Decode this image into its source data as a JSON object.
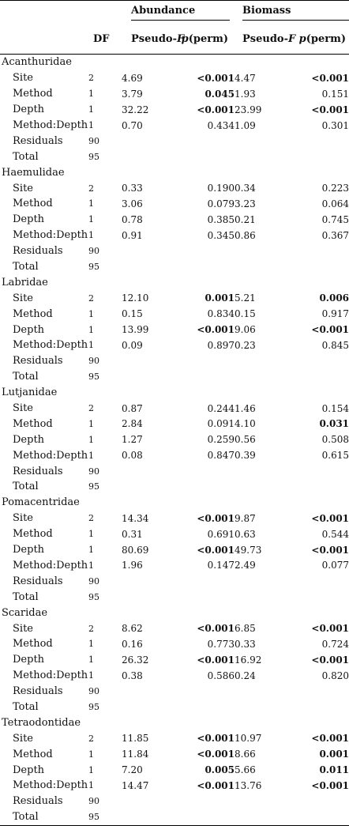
{
  "header": {
    "abundance": "Abundance",
    "biomass": "Biomass",
    "df": "DF",
    "pseudo_f_prefix": "Pseudo-",
    "pseudo_f_var": "F",
    "p_var": "p",
    "p_suffix": "(perm)"
  },
  "families": [
    {
      "name": "Acanthuridae",
      "rows": [
        {
          "term": "Site",
          "df": "2",
          "af": "4.69",
          "ap": "<0.001",
          "ap_sig": true,
          "bf": "4.47",
          "bp": "<0.001",
          "bp_sig": true
        },
        {
          "term": "Method",
          "df": "1",
          "af": "3.79",
          "ap": "0.045",
          "ap_sig": true,
          "bf": "1.93",
          "bp": "0.151",
          "bp_sig": false
        },
        {
          "term": "Depth",
          "df": "1",
          "af": "32.22",
          "ap": "<0.001",
          "ap_sig": true,
          "bf": "23.99",
          "bp": "<0.001",
          "bp_sig": true
        },
        {
          "term": "Method:Depth",
          "df": "1",
          "af": "0.70",
          "ap": "0.434",
          "ap_sig": false,
          "bf": "1.09",
          "bp": "0.301",
          "bp_sig": false
        },
        {
          "term": "Residuals",
          "df": "90",
          "af": "",
          "ap": "",
          "ap_sig": false,
          "bf": "",
          "bp": "",
          "bp_sig": false
        },
        {
          "term": "Total",
          "df": "95",
          "af": "",
          "ap": "",
          "ap_sig": false,
          "bf": "",
          "bp": "",
          "bp_sig": false
        }
      ]
    },
    {
      "name": "Haemulidae",
      "rows": [
        {
          "term": "Site",
          "df": "2",
          "af": "0.33",
          "ap": "0.190",
          "ap_sig": false,
          "bf": "0.34",
          "bp": "0.223",
          "bp_sig": false
        },
        {
          "term": "Method",
          "df": "1",
          "af": "3.06",
          "ap": "0.079",
          "ap_sig": false,
          "bf": "3.23",
          "bp": "0.064",
          "bp_sig": false
        },
        {
          "term": "Depth",
          "df": "1",
          "af": "0.78",
          "ap": "0.385",
          "ap_sig": false,
          "bf": "0.21",
          "bp": "0.745",
          "bp_sig": false
        },
        {
          "term": "Method:Depth",
          "df": "1",
          "af": "0.91",
          "ap": "0.345",
          "ap_sig": false,
          "bf": "0.86",
          "bp": "0.367",
          "bp_sig": false
        },
        {
          "term": "Residuals",
          "df": "90",
          "af": "",
          "ap": "",
          "ap_sig": false,
          "bf": "",
          "bp": "",
          "bp_sig": false
        },
        {
          "term": "Total",
          "df": "95",
          "af": "",
          "ap": "",
          "ap_sig": false,
          "bf": "",
          "bp": "",
          "bp_sig": false
        }
      ]
    },
    {
      "name": "Labridae",
      "rows": [
        {
          "term": "Site",
          "df": "2",
          "af": "12.10",
          "ap": "0.001",
          "ap_sig": true,
          "bf": "5.21",
          "bp": "0.006",
          "bp_sig": true
        },
        {
          "term": "Method",
          "df": "1",
          "af": "0.15",
          "ap": "0.834",
          "ap_sig": false,
          "bf": "0.15",
          "bp": "0.917",
          "bp_sig": false
        },
        {
          "term": "Depth",
          "df": "1",
          "af": "13.99",
          "ap": "<0.001",
          "ap_sig": true,
          "bf": "9.06",
          "bp": "<0.001",
          "bp_sig": true
        },
        {
          "term": "Method:Depth",
          "df": "1",
          "af": "0.09",
          "ap": "0.897",
          "ap_sig": false,
          "bf": "0.23",
          "bp": "0.845",
          "bp_sig": false
        },
        {
          "term": "Residuals",
          "df": "90",
          "af": "",
          "ap": "",
          "ap_sig": false,
          "bf": "",
          "bp": "",
          "bp_sig": false
        },
        {
          "term": "Total",
          "df": "95",
          "af": "",
          "ap": "",
          "ap_sig": false,
          "bf": "",
          "bp": "",
          "bp_sig": false
        }
      ]
    },
    {
      "name": "Lutjanidae",
      "rows": [
        {
          "term": "Site",
          "df": "2",
          "af": "0.87",
          "ap": "0.244",
          "ap_sig": false,
          "bf": "1.46",
          "bp": "0.154",
          "bp_sig": false
        },
        {
          "term": "Method",
          "df": "1",
          "af": "2.84",
          "ap": "0.091",
          "ap_sig": false,
          "bf": "4.10",
          "bp": "0.031",
          "bp_sig": true
        },
        {
          "term": "Depth",
          "df": "1",
          "af": "1.27",
          "ap": "0.259",
          "ap_sig": false,
          "bf": "0.56",
          "bp": "0.508",
          "bp_sig": false
        },
        {
          "term": "Method:Depth",
          "df": "1",
          "af": "0.08",
          "ap": "0.847",
          "ap_sig": false,
          "bf": "0.39",
          "bp": "0.615",
          "bp_sig": false
        },
        {
          "term": "Residuals",
          "df": "90",
          "af": "",
          "ap": "",
          "ap_sig": false,
          "bf": "",
          "bp": "",
          "bp_sig": false
        },
        {
          "term": "Total",
          "df": "95",
          "af": "",
          "ap": "",
          "ap_sig": false,
          "bf": "",
          "bp": "",
          "bp_sig": false
        }
      ]
    },
    {
      "name": "Pomacentridae",
      "rows": [
        {
          "term": "Site",
          "df": "2",
          "af": "14.34",
          "ap": "<0.001",
          "ap_sig": true,
          "bf": "9.87",
          "bp": "<0.001",
          "bp_sig": true
        },
        {
          "term": "Method",
          "df": "1",
          "af": "0.31",
          "ap": "0.691",
          "ap_sig": false,
          "bf": "0.63",
          "bp": "0.544",
          "bp_sig": false
        },
        {
          "term": "Depth",
          "df": "1",
          "af": "80.69",
          "ap": "<0.001",
          "ap_sig": true,
          "bf": "49.73",
          "bp": "<0.001",
          "bp_sig": true
        },
        {
          "term": "Method:Depth",
          "df": "1",
          "af": "1.96",
          "ap": "0.147",
          "ap_sig": false,
          "bf": "2.49",
          "bp": "0.077",
          "bp_sig": false
        },
        {
          "term": "Residuals",
          "df": "90",
          "af": "",
          "ap": "",
          "ap_sig": false,
          "bf": "",
          "bp": "",
          "bp_sig": false
        },
        {
          "term": "Total",
          "df": "95",
          "af": "",
          "ap": "",
          "ap_sig": false,
          "bf": "",
          "bp": "",
          "bp_sig": false
        }
      ]
    },
    {
      "name": "Scaridae",
      "rows": [
        {
          "term": "Site",
          "df": "2",
          "af": "8.62",
          "ap": "<0.001",
          "ap_sig": true,
          "bf": "6.85",
          "bp": "<0.001",
          "bp_sig": true
        },
        {
          "term": "Method",
          "df": "1",
          "af": "0.16",
          "ap": "0.773",
          "ap_sig": false,
          "bf": "0.33",
          "bp": "0.724",
          "bp_sig": false
        },
        {
          "term": "Depth",
          "df": "1",
          "af": "26.32",
          "ap": "<0.001",
          "ap_sig": true,
          "bf": "16.92",
          "bp": "<0.001",
          "bp_sig": true
        },
        {
          "term": "Method:Depth",
          "df": "1",
          "af": "0.38",
          "ap": "0.586",
          "ap_sig": false,
          "bf": "0.24",
          "bp": "0.820",
          "bp_sig": false
        },
        {
          "term": "Residuals",
          "df": "90",
          "af": "",
          "ap": "",
          "ap_sig": false,
          "bf": "",
          "bp": "",
          "bp_sig": false
        },
        {
          "term": "Total",
          "df": "95",
          "af": "",
          "ap": "",
          "ap_sig": false,
          "bf": "",
          "bp": "",
          "bp_sig": false
        }
      ]
    },
    {
      "name": "Tetraodontidae",
      "rows": [
        {
          "term": "Site",
          "df": "2",
          "af": "11.85",
          "ap": "<0.001",
          "ap_sig": true,
          "bf": "10.97",
          "bp": "<0.001",
          "bp_sig": true
        },
        {
          "term": "Method",
          "df": "1",
          "af": "11.84",
          "ap": "<0.001",
          "ap_sig": true,
          "bf": "8.66",
          "bp": "0.001",
          "bp_sig": true
        },
        {
          "term": "Depth",
          "df": "1",
          "af": "7.20",
          "ap": "0.005",
          "ap_sig": true,
          "bf": "5.66",
          "bp": "0.011",
          "bp_sig": true
        },
        {
          "term": "Method:Depth",
          "df": "1",
          "af": "14.47",
          "ap": "<0.001",
          "ap_sig": true,
          "bf": "13.76",
          "bp": "<0.001",
          "bp_sig": true
        },
        {
          "term": "Residuals",
          "df": "90",
          "af": "",
          "ap": "",
          "ap_sig": false,
          "bf": "",
          "bp": "",
          "bp_sig": false
        },
        {
          "term": "Total",
          "df": "95",
          "af": "",
          "ap": "",
          "ap_sig": false,
          "bf": "",
          "bp": "",
          "bp_sig": false
        }
      ]
    }
  ]
}
